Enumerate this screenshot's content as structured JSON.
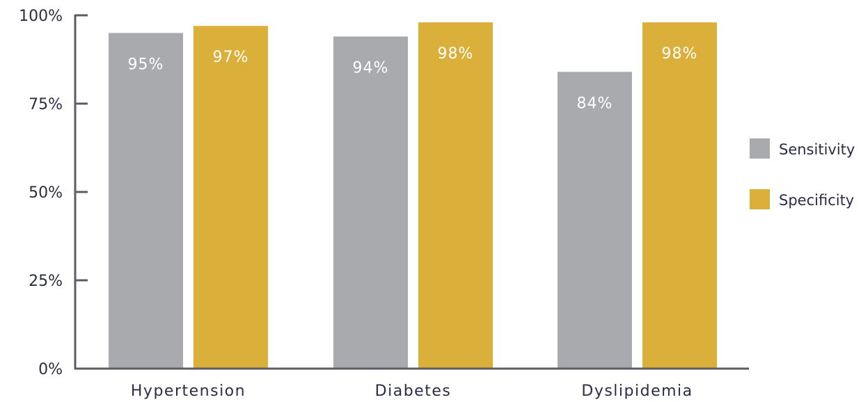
{
  "chart_data": {
    "type": "bar",
    "categories": [
      "Hypertension",
      "Diabetes",
      "Dyslipidemia"
    ],
    "series": [
      {
        "name": "Sensitivity",
        "values": [
          95,
          94,
          84
        ],
        "labels": [
          "95%",
          "94%",
          "84%"
        ],
        "color": "#a9aaae"
      },
      {
        "name": "Specificity",
        "values": [
          97,
          98,
          98
        ],
        "labels": [
          "97%",
          "98%",
          "98%"
        ],
        "color": "#dbb03a"
      }
    ],
    "ylim": [
      0,
      100
    ],
    "yticks": [
      0,
      25,
      50,
      75,
      100
    ],
    "ytick_labels": [
      "0%",
      "25%",
      "50%",
      "75%",
      "100%"
    ],
    "title": "",
    "xlabel": "",
    "ylabel": "",
    "grid": false,
    "legend_position": "right",
    "axis_color": "#5b5d66",
    "text_color": "#2b2d42"
  }
}
